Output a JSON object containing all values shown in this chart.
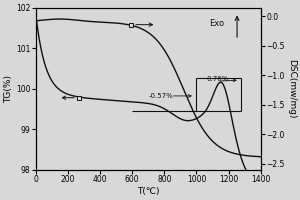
{
  "title": "",
  "xlabel": "T(℃)",
  "ylabel_left": "TG(%)",
  "ylabel_right": "DSC(mw/mg)",
  "xlim": [
    0,
    1400
  ],
  "ylim_left": [
    98,
    102
  ],
  "ylim_right": [
    -2.6,
    0.15
  ],
  "xticks": [
    0,
    200,
    400,
    600,
    800,
    1000,
    1200,
    1400
  ],
  "yticks_left": [
    98,
    99,
    100,
    101,
    102
  ],
  "yticks_right": [
    0.0,
    -0.5,
    -1.0,
    -1.5,
    -2.0,
    -2.5
  ],
  "annotation1": "-0.57%",
  "annotation2": "0.76%",
  "exo_label": "Exo",
  "bg_color": "#d8d8d8",
  "line_color": "#111111",
  "tg_sq_x": 590,
  "tg_sq_y": 101.58,
  "tg_arr_x": 750,
  "tg_arr_y": 101.58,
  "dsc_sq_x": 270,
  "dsc_sq_y": -1.38,
  "dsc_arr_x": 140,
  "dsc_arr_y": -1.38,
  "hline1_y": -1.6,
  "hline1_x1": 600,
  "hline1_x2": 1000,
  "hline2_y": -1.05,
  "hline2_x1": 1000,
  "hline2_x2": 1280,
  "hline3_y": -1.6,
  "hline3_x1": 1000,
  "hline3_x2": 1280,
  "vline_x": 1000,
  "vline2_x": 1280
}
